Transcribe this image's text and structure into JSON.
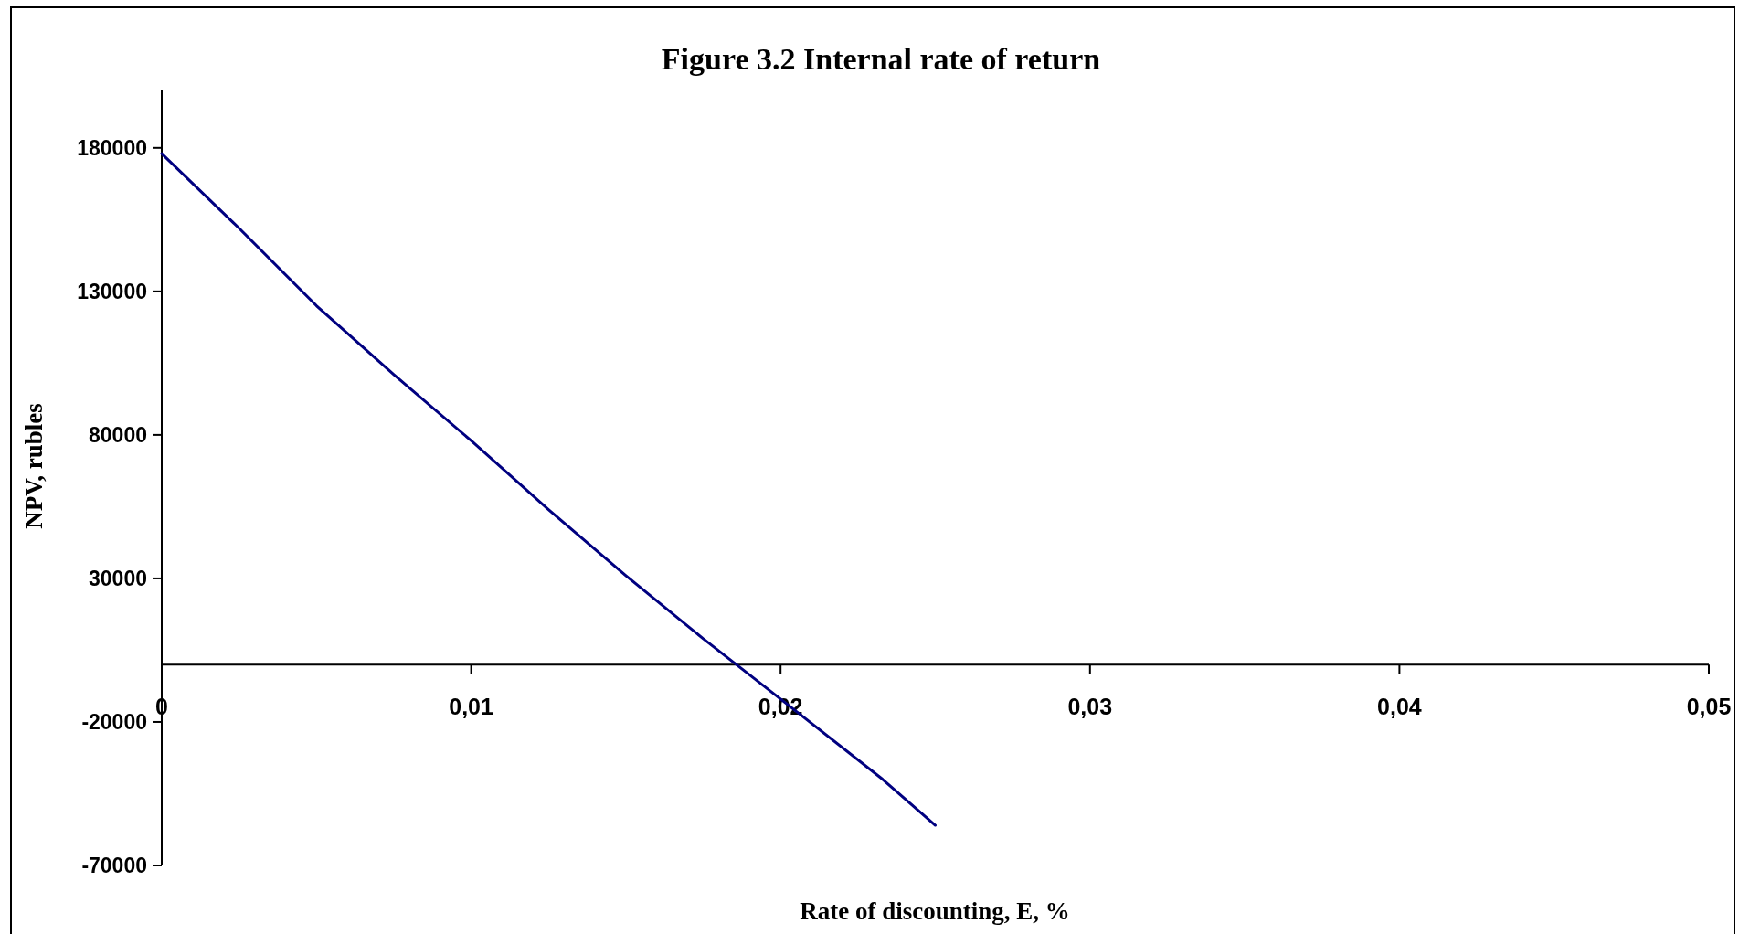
{
  "chart_data": {
    "type": "line",
    "title": "Figure 3.2 Internal rate of return",
    "xlabel": "Rate of discounting, E, %",
    "ylabel": "NPV, rubles",
    "x": [
      0,
      0.0025,
      0.005,
      0.0075,
      0.01,
      0.0125,
      0.015,
      0.0175,
      0.02,
      0.0233,
      0.025
    ],
    "series": [
      {
        "color": "#000080",
        "values": [
          178000,
          152000,
          125000,
          101000,
          78000,
          54000,
          31000,
          9000,
          -12000,
          -40000,
          -56000
        ]
      }
    ],
    "xlim": [
      0,
      0.05
    ],
    "xticks": [
      0,
      {
        "value": 0.01,
        "label": "0,01"
      },
      {
        "value": 0.02,
        "label": "0,02"
      },
      {
        "value": 0.03,
        "label": "0,03"
      },
      {
        "value": 0.04,
        "label": "0,04"
      },
      {
        "value": 0.05,
        "label": "0,05"
      }
    ],
    "ylim": [
      -70000,
      200000
    ],
    "yticks": [
      -70000,
      -20000,
      30000,
      80000,
      130000,
      180000
    ],
    "grid": false,
    "marker": "none",
    "line_style": "solid"
  }
}
